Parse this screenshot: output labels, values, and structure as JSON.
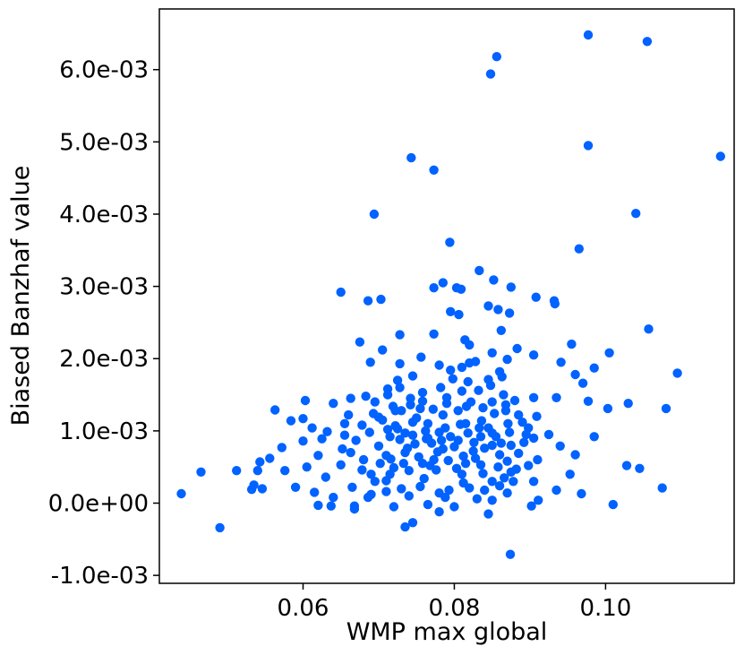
{
  "chart_data": {
    "type": "scatter",
    "xlabel": "WMP max global",
    "ylabel": "Biased Banzhaf value",
    "xlim": [
      0.041,
      0.117
    ],
    "ylim": [
      -0.00111,
      0.00684
    ],
    "x_ticks": [
      {
        "value": 0.06,
        "label": "0.06"
      },
      {
        "value": 0.08,
        "label": "0.08"
      },
      {
        "value": 0.1,
        "label": "0.10"
      }
    ],
    "y_ticks": [
      {
        "value": -0.001,
        "label": "-1.0e-03"
      },
      {
        "value": 0.0,
        "label": "0.0e+00"
      },
      {
        "value": 0.001,
        "label": "1.0e-03"
      },
      {
        "value": 0.002,
        "label": "2.0e-03"
      },
      {
        "value": 0.003,
        "label": "3.0e-03"
      },
      {
        "value": 0.004,
        "label": "4.0e-03"
      },
      {
        "value": 0.005,
        "label": "5.0e-03"
      },
      {
        "value": 0.006,
        "label": "6.0e-03"
      }
    ],
    "grid": false,
    "legend": false,
    "marker_color": "#0062ff",
    "series": [
      {
        "points": [
          [
            0.0977,
            0.00648
          ],
          [
            0.1055,
            0.00639
          ],
          [
            0.0856,
            0.00618
          ],
          [
            0.0848,
            0.00594
          ],
          [
            0.0977,
            0.00495
          ],
          [
            0.1152,
            0.0048
          ],
          [
            0.0743,
            0.00478
          ],
          [
            0.0773,
            0.00461
          ],
          [
            0.0694,
            0.004
          ],
          [
            0.104,
            0.00401
          ],
          [
            0.0794,
            0.00361
          ],
          [
            0.0965,
            0.00352
          ],
          [
            0.0833,
            0.00322
          ],
          [
            0.0852,
            0.00309
          ],
          [
            0.0785,
            0.00305
          ],
          [
            0.0803,
            0.00298
          ],
          [
            0.0773,
            0.00298
          ],
          [
            0.0809,
            0.00296
          ],
          [
            0.0875,
            0.00299
          ],
          [
            0.065,
            0.00292
          ],
          [
            0.0686,
            0.0028
          ],
          [
            0.0703,
            0.00282
          ],
          [
            0.0908,
            0.00285
          ],
          [
            0.0932,
            0.0028
          ],
          [
            0.0933,
            0.00276
          ],
          [
            0.0845,
            0.00273
          ],
          [
            0.0858,
            0.00268
          ],
          [
            0.0795,
            0.00265
          ],
          [
            0.0806,
            0.00261
          ],
          [
            0.0873,
            0.00263
          ],
          [
            0.1057,
            0.00241
          ],
          [
            0.0862,
            0.00239
          ],
          [
            0.0728,
            0.00233
          ],
          [
            0.0773,
            0.00234
          ],
          [
            0.0814,
            0.00226
          ],
          [
            0.0675,
            0.00223
          ],
          [
            0.0955,
            0.0022
          ],
          [
            0.082,
            0.00219
          ],
          [
            0.0883,
            0.00214
          ],
          [
            0.0705,
            0.00212
          ],
          [
            0.085,
            0.00208
          ],
          [
            0.1005,
            0.00208
          ],
          [
            0.0905,
            0.00205
          ],
          [
            0.0756,
            0.00202
          ],
          [
            0.087,
            0.00199
          ],
          [
            0.0689,
            0.00195
          ],
          [
            0.0941,
            0.00195
          ],
          [
            0.0728,
            0.00193
          ],
          [
            0.078,
            0.00191
          ],
          [
            0.082,
            0.00194
          ],
          [
            0.0985,
            0.00187
          ],
          [
            0.1095,
            0.0018
          ],
          [
            0.096,
            0.00178
          ],
          [
            0.0745,
            0.00176
          ],
          [
            0.0725,
            0.0017
          ],
          [
            0.0845,
            0.00171
          ],
          [
            0.097,
            0.00166
          ],
          [
            0.0728,
            0.0016
          ],
          [
            0.081,
            0.00155
          ],
          [
            0.0758,
            0.00153
          ],
          [
            0.0712,
            0.0015
          ],
          [
            0.0683,
            0.00148
          ],
          [
            0.0865,
            0.0015
          ],
          [
            0.0742,
            0.00145
          ],
          [
            0.079,
            0.00146
          ],
          [
            0.0905,
            0.00146
          ],
          [
            0.0935,
            0.00146
          ],
          [
            0.0663,
            0.00145
          ],
          [
            0.0603,
            0.00142
          ],
          [
            0.103,
            0.00138
          ],
          [
            0.0977,
            0.00141
          ],
          [
            0.088,
            0.00142
          ],
          [
            0.085,
            0.0014
          ],
          [
            0.064,
            0.00138
          ],
          [
            0.0719,
            0.00134
          ],
          [
            0.0816,
            0.00134
          ],
          [
            0.0755,
            0.00131
          ],
          [
            0.1003,
            0.00131
          ],
          [
            0.108,
            0.00131
          ],
          [
            0.0563,
            0.00129
          ],
          [
            0.073,
            0.00128
          ],
          [
            0.0868,
            0.00128
          ],
          [
            0.0693,
            0.00124
          ],
          [
            0.066,
            0.00122
          ],
          [
            0.0785,
            0.00122
          ],
          [
            0.0909,
            0.0012
          ],
          [
            0.07,
            0.00119
          ],
          [
            0.06,
            0.00117
          ],
          [
            0.0584,
            0.00114
          ],
          [
            0.0836,
            0.00114
          ],
          [
            0.0745,
            0.00112
          ],
          [
            0.0655,
            0.0011
          ],
          [
            0.0765,
            0.0011
          ],
          [
            0.0871,
            0.0011
          ],
          [
            0.0808,
            0.00109
          ],
          [
            0.0722,
            0.00107
          ],
          [
            0.0612,
            0.00104
          ],
          [
            0.0898,
            0.00104
          ],
          [
            0.0632,
            0.00099
          ],
          [
            0.0688,
            0.00098
          ],
          [
            0.078,
            0.00098
          ],
          [
            0.0735,
            0.00097
          ],
          [
            0.085,
            0.00097
          ],
          [
            0.0925,
            0.00095
          ],
          [
            0.0655,
            0.00094
          ],
          [
            0.0715,
            0.00092
          ],
          [
            0.0835,
            0.00092
          ],
          [
            0.0985,
            0.00092
          ],
          [
            0.0625,
            0.00089
          ],
          [
            0.0763,
            0.00089
          ],
          [
            0.067,
            0.00087
          ],
          [
            0.0805,
            0.00087
          ],
          [
            0.06,
            0.00086
          ],
          [
            0.0892,
            0.00084
          ],
          [
            0.0748,
            0.00082
          ],
          [
            0.0572,
            0.00077
          ],
          [
            0.07,
            0.00079
          ],
          [
            0.0875,
            0.0008
          ],
          [
            0.094,
            0.00079
          ],
          [
            0.0652,
            0.00075
          ],
          [
            0.0785,
            0.00075
          ],
          [
            0.0825,
            0.00072
          ],
          [
            0.0735,
            0.0007
          ],
          [
            0.0556,
            0.00062
          ],
          [
            0.062,
            0.00066
          ],
          [
            0.071,
            0.00066
          ],
          [
            0.086,
            0.00067
          ],
          [
            0.096,
            0.00067
          ],
          [
            0.0543,
            0.00057
          ],
          [
            0.068,
            0.0006
          ],
          [
            0.0773,
            0.0006
          ],
          [
            0.091,
            0.0006
          ],
          [
            0.0758,
            0.00055
          ],
          [
            0.065,
            0.00053
          ],
          [
            0.0835,
            0.00053
          ],
          [
            0.1028,
            0.00052
          ],
          [
            0.0605,
            0.0005
          ],
          [
            0.072,
            0.00049
          ],
          [
            0.1045,
            0.00048
          ],
          [
            0.0465,
            0.00043
          ],
          [
            0.0512,
            0.00045
          ],
          [
            0.0576,
            0.00045
          ],
          [
            0.054,
            0.00045
          ],
          [
            0.074,
            0.00045
          ],
          [
            0.0875,
            0.00043
          ],
          [
            0.069,
            0.0004
          ],
          [
            0.081,
            0.0004
          ],
          [
            0.0953,
            0.0004
          ],
          [
            0.063,
            0.00036
          ],
          [
            0.076,
            0.00034
          ],
          [
            0.085,
            0.0003
          ],
          [
            0.071,
            0.00031
          ],
          [
            0.0905,
            0.0003
          ],
          [
            0.0535,
            0.00025
          ],
          [
            0.059,
            0.00022
          ],
          [
            0.0665,
            0.00022
          ],
          [
            0.073,
            0.0002
          ],
          [
            0.082,
            0.00021
          ],
          [
            0.0935,
            0.00018
          ],
          [
            0.0532,
            0.00019
          ],
          [
            0.0546,
            0.0002
          ],
          [
            0.1075,
            0.00021
          ],
          [
            0.0615,
            0.00015
          ],
          [
            0.078,
            0.00014
          ],
          [
            0.087,
            0.00014
          ],
          [
            0.0968,
            0.00013
          ],
          [
            0.0439,
            0.00013
          ],
          [
            0.069,
            0.00012
          ],
          [
            0.074,
            0.0001
          ],
          [
            0.064,
            8e-05
          ],
          [
            0.083,
            6e-05
          ],
          [
            0.0911,
            4e-05
          ],
          [
            0.062,
            -3e-05
          ],
          [
            0.0637,
            -4e-05
          ],
          [
            0.0668,
            -4e-05
          ],
          [
            0.072,
            -5e-05
          ],
          [
            0.08,
            -5e-05
          ],
          [
            0.0902,
            -4e-05
          ],
          [
            0.101,
            -2e-05
          ],
          [
            0.0668,
            -8e-05
          ],
          [
            0.078,
            -0.00012
          ],
          [
            0.0845,
            -0.00015
          ],
          [
            0.0745,
            -0.00027
          ],
          [
            0.0735,
            -0.00033
          ],
          [
            0.049,
            -0.00034
          ],
          [
            0.0874,
            -0.00071
          ],
          [
            0.0705,
            0.00115
          ],
          [
            0.0712,
            0.00102
          ],
          [
            0.0728,
            0.00088
          ],
          [
            0.0738,
            0.00076
          ],
          [
            0.075,
            0.00118
          ],
          [
            0.0762,
            0.001
          ],
          [
            0.077,
            0.00083
          ],
          [
            0.0778,
            0.00071
          ],
          [
            0.0788,
            0.00104
          ],
          [
            0.0795,
            0.00092
          ],
          [
            0.08,
            0.00078
          ],
          [
            0.0812,
            0.00065
          ],
          [
            0.0818,
            0.00097
          ],
          [
            0.0826,
            0.00084
          ],
          [
            0.084,
            0.00076
          ],
          [
            0.0845,
            0.00104
          ],
          [
            0.0855,
            0.00092
          ],
          [
            0.0862,
            0.00083
          ],
          [
            0.087,
            0.00058
          ],
          [
            0.0885,
            0.00069
          ],
          [
            0.0895,
            0.00095
          ],
          [
            0.0702,
            0.00055
          ],
          [
            0.0716,
            0.00061
          ],
          [
            0.0733,
            0.00055
          ],
          [
            0.0753,
            0.00064
          ],
          [
            0.0768,
            0.00052
          ],
          [
            0.0776,
            0.00046
          ],
          [
            0.0792,
            0.00059
          ],
          [
            0.0803,
            0.00048
          ],
          [
            0.0815,
            0.00055
          ],
          [
            0.0828,
            0.00062
          ],
          [
            0.0838,
            0.00041
          ],
          [
            0.0858,
            0.0005
          ],
          [
            0.0866,
            0.00035
          ],
          [
            0.0882,
            0.00047
          ],
          [
            0.0898,
            0.00052
          ],
          [
            0.0695,
            0.0014
          ],
          [
            0.0722,
            0.00128
          ],
          [
            0.0742,
            0.00136
          ],
          [
            0.0758,
            0.00141
          ],
          [
            0.0772,
            0.0013
          ],
          [
            0.079,
            0.00138
          ],
          [
            0.0805,
            0.00128
          ],
          [
            0.0822,
            0.0014
          ],
          [
            0.0838,
            0.00132
          ],
          [
            0.0853,
            0.00124
          ],
          [
            0.0868,
            0.00136
          ],
          [
            0.0885,
            0.00122
          ],
          [
            0.0712,
            0.00158
          ],
          [
            0.0782,
            0.0016
          ],
          [
            0.0798,
            0.00172
          ],
          [
            0.0818,
            0.00168
          ],
          [
            0.0832,
            0.00156
          ],
          [
            0.0848,
            0.00163
          ],
          [
            0.0863,
            0.00175
          ],
          [
            0.0795,
            0.00184
          ],
          [
            0.081,
            0.00188
          ],
          [
            0.0828,
            0.00196
          ],
          [
            0.086,
            0.00182
          ],
          [
            0.0678,
            0.00108
          ],
          [
            0.0663,
            0.0007
          ],
          [
            0.0678,
            0.00046
          ],
          [
            0.0695,
            0.0003
          ],
          [
            0.071,
            0.00016
          ],
          [
            0.0755,
            0.00023
          ],
          [
            0.0793,
            0.00018
          ],
          [
            0.0812,
            0.00028
          ],
          [
            0.084,
            0.00018
          ],
          [
            0.086,
            0.00024
          ],
          [
            0.0878,
            0.0003
          ],
          [
            0.0765,
            -2e-05
          ],
          [
            0.0788,
            8e-05
          ],
          [
            0.085,
            4e-05
          ],
          [
            0.0686,
            8e-05
          ],
          [
            0.0715,
            0.0004
          ],
          [
            0.0725,
            0.00103
          ],
          [
            0.0745,
            0.00094
          ],
          [
            0.0765,
            0.0009
          ],
          [
            0.0783,
            0.00087
          ],
          [
            0.0815,
            0.0011
          ],
          [
            0.0833,
            0.00104
          ],
          [
            0.085,
            0.0008
          ],
          [
            0.0873,
            0.00098
          ],
          [
            0.089,
            0.00112
          ],
          [
            0.0905,
            0.0009
          ]
        ]
      }
    ]
  }
}
